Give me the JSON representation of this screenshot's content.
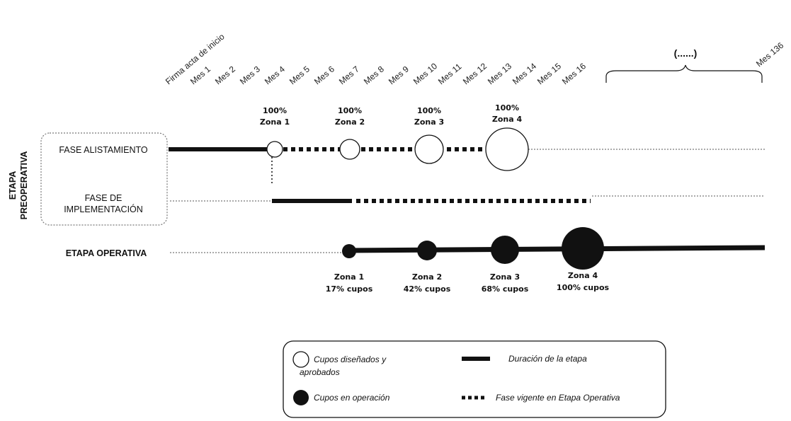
{
  "months": [
    "Firma acta de inicio",
    "Mes 1",
    "Mes 2",
    "Mes 3",
    "Mes 4",
    "Mes 5",
    "Mes 6",
    "Mes 7",
    "Mes 8",
    "Mes 9",
    "Mes 10",
    "Mes 11",
    "Mes 12",
    "Mes 13",
    "Mes 14",
    "Mes 15",
    "Mes 16"
  ],
  "ellipsis_label": "(......)",
  "last_month": "Mes 136",
  "stage_preoperativa": "ETAPA PREOPERATIVA",
  "fase_alistamiento": "FASE ALISTAMIENTO",
  "fase_implementacion_1": "FASE DE",
  "fase_implementacion_2": "IMPLEMENTACIÓN",
  "etapa_operativa": "ETAPA OPERATIVA",
  "designed_milestones": [
    {
      "pct": "100%",
      "zone": "Zona 1"
    },
    {
      "pct": "100%",
      "zone": "Zona 2"
    },
    {
      "pct": "100%",
      "zone": "Zona 3"
    },
    {
      "pct": "100%",
      "zone": "Zona 4"
    }
  ],
  "operation_milestones": [
    {
      "zone": "Zona 1",
      "cupos": "17% cupos"
    },
    {
      "zone": "Zona 2",
      "cupos": "42% cupos"
    },
    {
      "zone": "Zona 3",
      "cupos": "68% cupos"
    },
    {
      "zone": "Zona 4",
      "cupos": "100% cupos"
    }
  ],
  "legend": {
    "open_circle_1": "Cupos diseñados y",
    "open_circle_2": "aprobados",
    "filled_circle": "Cupos en operación",
    "solid_line": "Duración de la etapa",
    "dashed_line": "Fase vigente en Etapa Operativa"
  }
}
